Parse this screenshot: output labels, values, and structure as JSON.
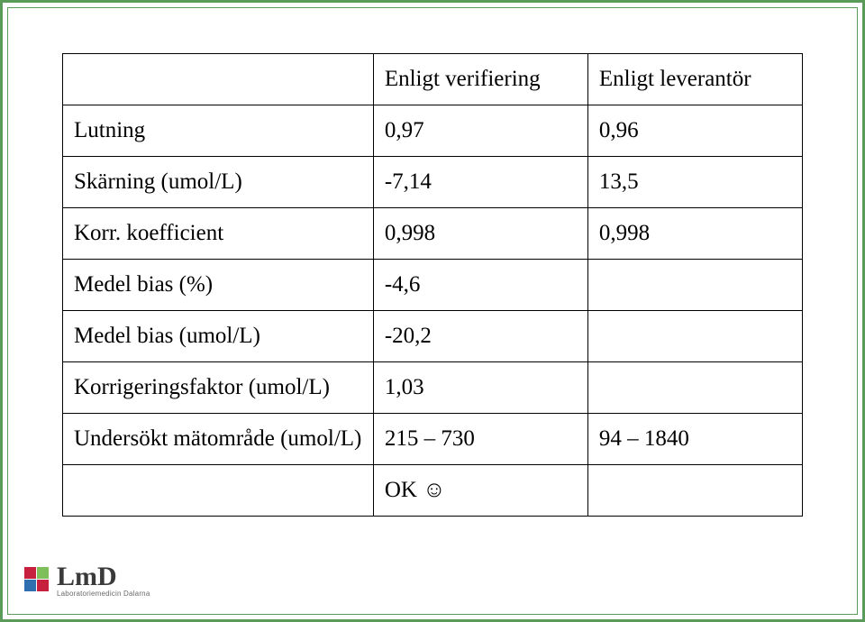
{
  "frame": {
    "outer_border_color": "#5a9b5a",
    "inner_border_color": "#5a9b5a",
    "background": "#ffffff"
  },
  "table": {
    "border_color": "#000000",
    "text_color": "#000000",
    "font_size_pt": 19,
    "columns": [
      "",
      "Enligt verifiering",
      "Enligt leverantör"
    ],
    "rows": [
      [
        "Lutning",
        "0,97",
        "0,96"
      ],
      [
        "Skärning (umol/L)",
        "-7,14",
        "13,5"
      ],
      [
        "Korr. koefficient",
        "0,998",
        "0,998"
      ],
      [
        "Medel bias (%)",
        "-4,6",
        ""
      ],
      [
        "Medel bias (umol/L)",
        "-20,2",
        ""
      ],
      [
        "Korrigeringsfaktor (umol/L)",
        "1,03",
        ""
      ],
      [
        "Undersökt mätområde (umol/L)",
        "215 – 730",
        "94 – 1840"
      ],
      [
        "",
        "OK ☺",
        ""
      ]
    ]
  },
  "logo": {
    "main": "LmD",
    "sub": "Laboratoriemedicin Dalarna",
    "square_colors": [
      "#c71f3e",
      "#7fbf5a",
      "#2f6fb0",
      "#c71f3e"
    ]
  }
}
